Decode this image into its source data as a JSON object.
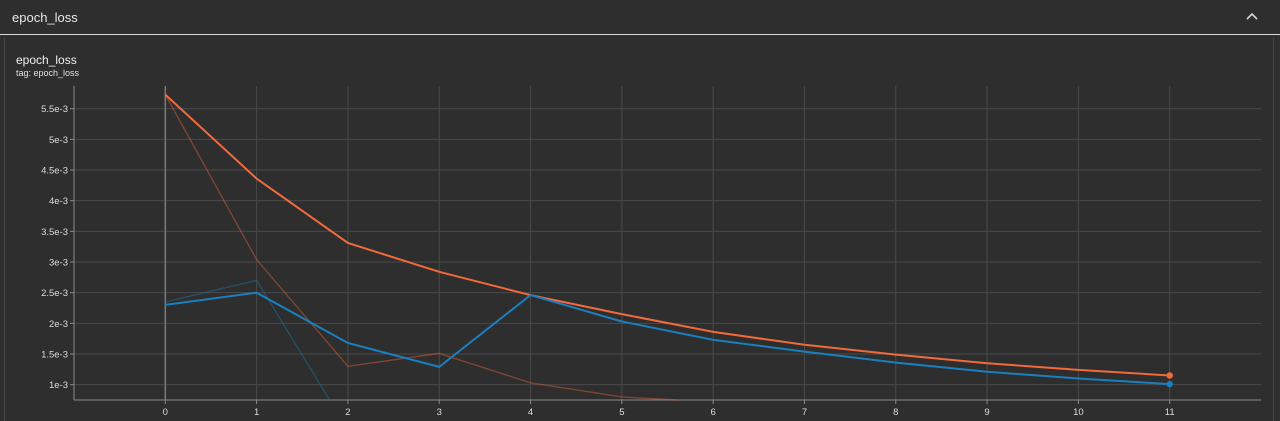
{
  "card": {
    "title": "epoch_loss",
    "collapse_icon": "chevron-up-icon"
  },
  "chart": {
    "title": "epoch_loss",
    "tag": "tag: epoch_loss"
  },
  "chart_data": {
    "type": "line",
    "title": "epoch_loss",
    "xlabel": "",
    "ylabel": "",
    "grid": true,
    "xlim": [
      -1,
      12
    ],
    "ylim": [
      0.00075,
      0.00587
    ],
    "x_ticks": [
      0,
      1,
      2,
      3,
      4,
      5,
      6,
      7,
      8,
      9,
      10,
      11
    ],
    "y_ticks": [
      0.001,
      0.0015,
      0.002,
      0.0025,
      0.003,
      0.0035,
      0.004,
      0.0045,
      0.005,
      0.0055
    ],
    "y_tick_labels": [
      "1e-3",
      "1.5e-3",
      "2e-3",
      "2.5e-3",
      "3e-3",
      "3.5e-3",
      "4e-3",
      "4.5e-3",
      "5e-3",
      "5.5e-3"
    ],
    "x_tick_labels": [
      "0",
      "1",
      "2",
      "3",
      "4",
      "5",
      "6",
      "7",
      "8",
      "9",
      "10",
      "11"
    ],
    "series": [
      {
        "color": "#f26a3c",
        "smoothed": [
          {
            "x": 0,
            "y": 0.00573
          },
          {
            "x": 1,
            "y": 0.00436
          },
          {
            "x": 2,
            "y": 0.00331
          },
          {
            "x": 3,
            "y": 0.00284
          },
          {
            "x": 4,
            "y": 0.00246
          },
          {
            "x": 5,
            "y": 0.00215
          },
          {
            "x": 6,
            "y": 0.00186
          },
          {
            "x": 7,
            "y": 0.00165
          },
          {
            "x": 8,
            "y": 0.00149
          },
          {
            "x": 9,
            "y": 0.00135
          },
          {
            "x": 10,
            "y": 0.00124
          },
          {
            "x": 11,
            "y": 0.00115
          }
        ],
        "raw": [
          {
            "x": 0,
            "y": 0.00573
          },
          {
            "x": 1,
            "y": 0.00304
          },
          {
            "x": 2,
            "y": 0.0013
          },
          {
            "x": 3,
            "y": 0.00151
          },
          {
            "x": 4,
            "y": 0.00103
          },
          {
            "x": 5,
            "y": 0.0008
          },
          {
            "x": 5.6,
            "y": 0.00075
          }
        ]
      },
      {
        "color": "#1a7fbf",
        "smoothed": [
          {
            "x": 0,
            "y": 0.0023
          },
          {
            "x": 1,
            "y": 0.0025
          },
          {
            "x": 2,
            "y": 0.00168
          },
          {
            "x": 3,
            "y": 0.00129
          },
          {
            "x": 4,
            "y": 0.00246
          },
          {
            "x": 5,
            "y": 0.00203
          },
          {
            "x": 6,
            "y": 0.00173
          },
          {
            "x": 7,
            "y": 0.00154
          },
          {
            "x": 8,
            "y": 0.00136
          },
          {
            "x": 9,
            "y": 0.00121
          },
          {
            "x": 10,
            "y": 0.0011
          },
          {
            "x": 11,
            "y": 0.00101
          }
        ],
        "raw": [
          {
            "x": 0,
            "y": 0.00235
          },
          {
            "x": 1,
            "y": 0.0027
          },
          {
            "x": 1.8,
            "y": 0.00075
          }
        ]
      }
    ]
  }
}
